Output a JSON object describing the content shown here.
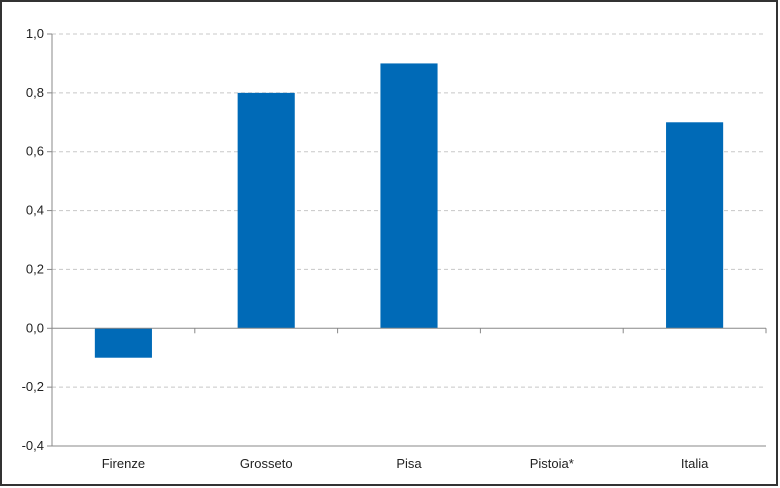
{
  "chart_data": {
    "type": "bar",
    "title": "",
    "xlabel": "",
    "ylabel": "",
    "categories": [
      "Firenze",
      "Grosseto",
      "Pisa",
      "Pistoia*",
      "Italia"
    ],
    "values": [
      -0.1,
      0.8,
      0.9,
      null,
      0.7
    ],
    "ylim": [
      -0.4,
      1.0
    ],
    "yticks": [
      1.0,
      0.8,
      0.6,
      0.4,
      0.2,
      0.0,
      -0.2,
      -0.4
    ],
    "ytick_labels": [
      "1,0",
      "0,8",
      "0,6",
      "0,4",
      "0,2",
      "0,0",
      "-0,2",
      "-0,4"
    ],
    "grid": "horizontal dashed",
    "bar_color": "#006ab7"
  }
}
